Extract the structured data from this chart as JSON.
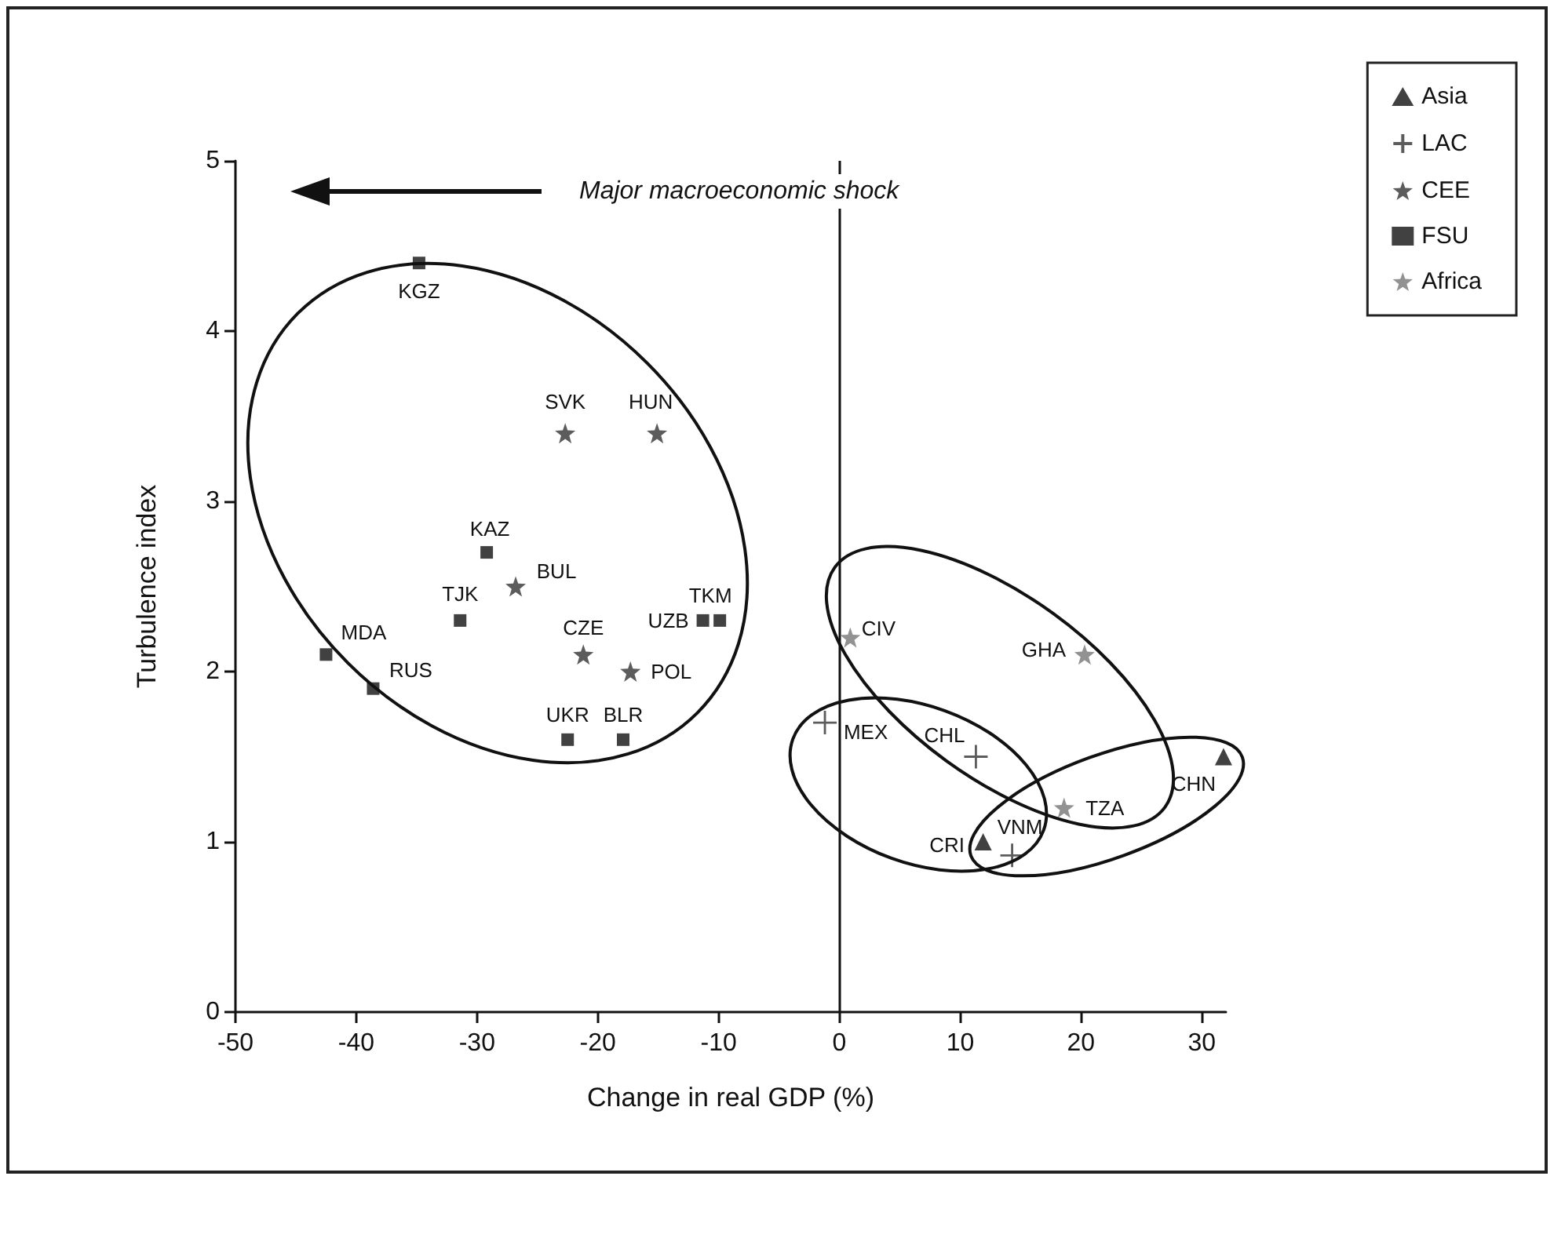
{
  "chart_data": {
    "type": "scatter",
    "xlabel": "Change in real GDP (%)",
    "ylabel": "Turbulence index",
    "xlim": [
      -50,
      32
    ],
    "xticks": [
      -50,
      -40,
      -30,
      -20,
      -10,
      0,
      10,
      20,
      30
    ],
    "ylim": [
      0,
      5
    ],
    "yticks": [
      0,
      1,
      2,
      3,
      4,
      5
    ],
    "grid": false,
    "legend": "top right",
    "series": [
      {
        "name": "Asia",
        "color": "#111111",
        "marker": "triangle",
        "x": [
          11.9,
          31.8
        ],
        "values": [
          1.0,
          1.5
        ]
      },
      {
        "name": "LAC",
        "color": "#333333",
        "marker": "cross",
        "x": [
          -1.2,
          11.3,
          14.3
        ],
        "values": [
          1.7,
          1.5,
          0.92
        ]
      },
      {
        "name": "CEE",
        "color": "#333333",
        "marker": "star",
        "x": [
          -22.7,
          -15.1,
          -26.8,
          -21.2,
          -17.3
        ],
        "values": [
          3.4,
          3.4,
          2.5,
          2.1,
          2.0
        ]
      },
      {
        "name": "FSU",
        "color": "#111111",
        "marker": "square",
        "x": [
          -34.8,
          -29.2,
          -31.4,
          -11.3,
          -9.9,
          -42.5,
          -38.6,
          -22.5,
          -17.9
        ],
        "values": [
          4.4,
          2.7,
          2.3,
          2.3,
          2.3,
          2.1,
          1.9,
          1.6,
          1.6
        ]
      },
      {
        "name": "Africa",
        "color": "#777777",
        "marker": "star",
        "x": [
          0.9,
          20.3,
          18.6
        ],
        "values": [
          2.2,
          2.1,
          1.2
        ]
      }
    ],
    "ref_lines": [
      {
        "axis": "x",
        "value": 0,
        "color": "#111111"
      }
    ],
    "annotations": [
      "Major macroeconomic shock",
      {
        "text": "KGZ",
        "x": -34.8,
        "y": 4.4
      },
      {
        "text": "SVK",
        "x": -22.7,
        "y": 3.4
      },
      {
        "text": "HUN",
        "x": -15.1,
        "y": 3.4
      },
      {
        "text": "KAZ",
        "x": -29.2,
        "y": 2.7
      },
      {
        "text": "BUL",
        "x": -26.8,
        "y": 2.5
      },
      {
        "text": "TJK",
        "x": -31.4,
        "y": 2.3
      },
      {
        "text": "CZE",
        "x": -21.2,
        "y": 2.1
      },
      {
        "text": "UZB",
        "x": -11.3,
        "y": 2.3
      },
      {
        "text": "TKM",
        "x": -9.9,
        "y": 2.3
      },
      {
        "text": "MDA",
        "x": -42.5,
        "y": 2.1
      },
      {
        "text": "RUS",
        "x": -38.6,
        "y": 1.9
      },
      {
        "text": "POL",
        "x": -17.3,
        "y": 2.0
      },
      {
        "text": "UKR",
        "x": -22.5,
        "y": 1.6
      },
      {
        "text": "BLR",
        "x": -17.9,
        "y": 1.6
      },
      {
        "text": "CIV",
        "x": 0.9,
        "y": 2.2
      },
      {
        "text": "GHA",
        "x": 20.3,
        "y": 2.1
      },
      {
        "text": "MEX",
        "x": -1.2,
        "y": 1.7
      },
      {
        "text": "CHL",
        "x": 11.3,
        "y": 1.5
      },
      {
        "text": "TZA",
        "x": 18.6,
        "y": 1.2
      },
      {
        "text": "CHN",
        "x": 31.8,
        "y": 1.5
      },
      {
        "text": "CRI",
        "x": 11.9,
        "y": 1.0
      },
      {
        "text": "VNM",
        "x": 14.3,
        "y": 0.92
      }
    ]
  }
}
